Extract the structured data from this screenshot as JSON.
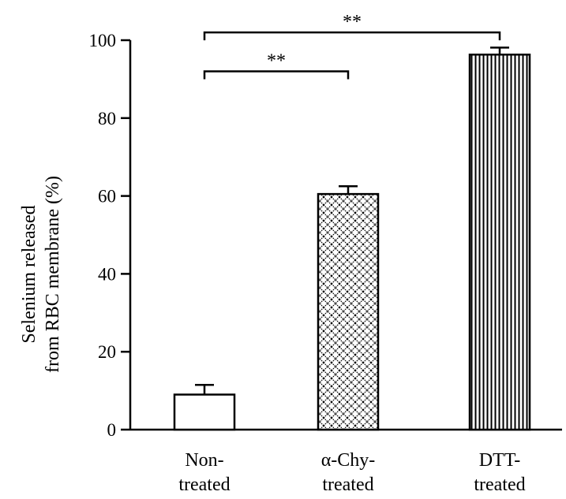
{
  "chart_data": {
    "type": "bar",
    "title": "",
    "ylabel_lines": [
      "Selenium released",
      "from RBC membrane (%)"
    ],
    "xlabel": "",
    "ylim": [
      0,
      100
    ],
    "yticks": [
      0,
      20,
      40,
      60,
      80,
      100
    ],
    "categories": [
      {
        "line1": "Non-",
        "line2": "treated"
      },
      {
        "line1": "α-Chy-",
        "line2": "treated"
      },
      {
        "line1": "DTT-",
        "line2": "treated"
      }
    ],
    "values": [
      9,
      60.5,
      96.3
    ],
    "errors": [
      2.5,
      2.0,
      1.8
    ],
    "fills": [
      "white",
      "crosshatch",
      "vertical-lines"
    ],
    "significance": [
      {
        "from": 0,
        "to": 1,
        "label": "**",
        "level": 92
      },
      {
        "from": 0,
        "to": 2,
        "label": "**",
        "level": 102
      }
    ],
    "grid": false,
    "legend": false
  }
}
